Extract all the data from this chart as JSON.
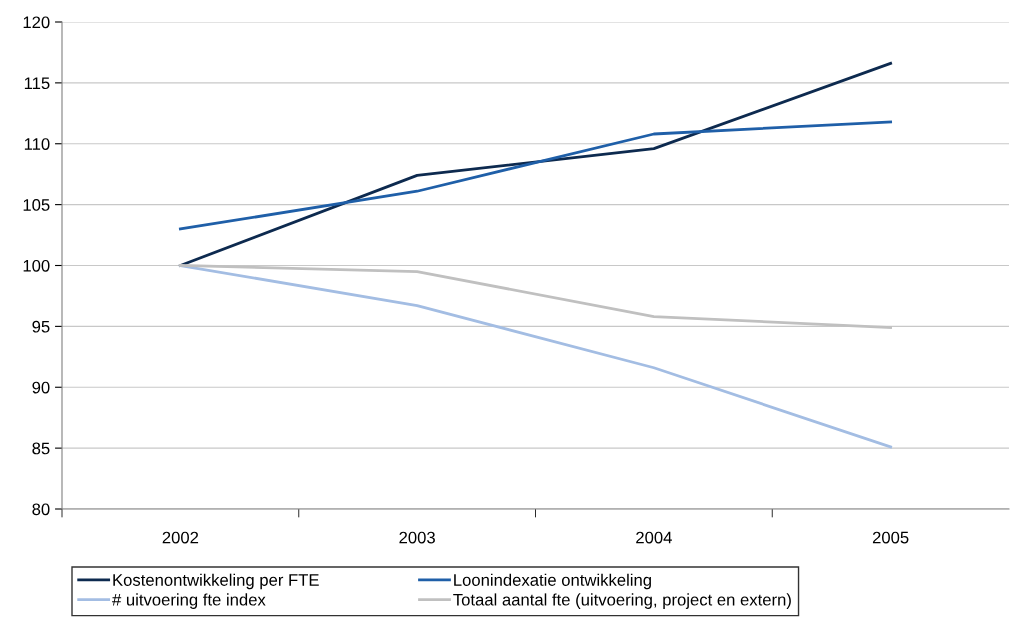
{
  "chart_data": {
    "type": "line",
    "categories": [
      "2002",
      "2003",
      "2004",
      "2005"
    ],
    "series": [
      {
        "name": "Kostenontwikkeling per FTE",
        "color": "#0d2a4f",
        "values": [
          100,
          107.4,
          109.6,
          116.6
        ]
      },
      {
        "name": "Loonindexatie ontwikkeling",
        "color": "#1f5fa8",
        "values": [
          103.0,
          106.1,
          110.8,
          111.8
        ]
      },
      {
        "name": "# uitvoering fte index",
        "color": "#a3bde3",
        "values": [
          100,
          96.7,
          91.6,
          85.1
        ]
      },
      {
        "name": "Totaal aantal fte (uitvoering, project en extern)",
        "color": "#c0c0c0",
        "values": [
          100,
          99.5,
          95.8,
          94.9
        ]
      }
    ],
    "ylim": [
      80,
      120
    ],
    "yticks": [
      80,
      85,
      90,
      95,
      100,
      105,
      110,
      115,
      120
    ],
    "grid": "y",
    "legend": "bottom",
    "marker": "none",
    "line_style": "solid"
  }
}
